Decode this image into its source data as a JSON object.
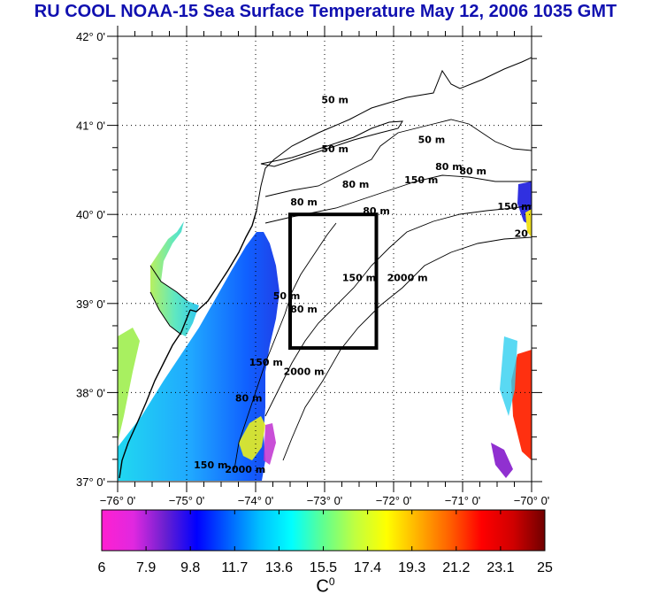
{
  "title": "RU COOL  NOAA-15 Sea Surface Temperature May 12, 2006 1035 GMT",
  "map": {
    "lat_labels": [
      "42° 0'",
      "41° 0'",
      "40° 0'",
      "39° 0'",
      "38° 0'",
      "37° 0'"
    ],
    "lat_values": [
      42,
      41,
      40,
      39,
      38,
      37
    ],
    "lon_labels": [
      "−76° 0'",
      "−75° 0'",
      "−74° 0'",
      "−73° 0'",
      "−72° 0'",
      "−71° 0'",
      "−70° 0'"
    ],
    "lon_values": [
      -76,
      -75,
      -74,
      -73,
      -72,
      -71,
      -70
    ],
    "lat_range": [
      37,
      42
    ],
    "lon_range": [
      -76,
      -70
    ],
    "study_box": {
      "lon_min": -73.5,
      "lon_max": -72.25,
      "lat_min": 38.5,
      "lat_max": 40.0
    },
    "contour_labels": [
      {
        "text": "50 m",
        "lon": -72.85,
        "lat": 41.25
      },
      {
        "text": "50 m",
        "lon": -72.85,
        "lat": 40.7
      },
      {
        "text": "50 m",
        "lon": -71.45,
        "lat": 40.8
      },
      {
        "text": "80 m",
        "lon": -71.2,
        "lat": 40.5
      },
      {
        "text": "80 m",
        "lon": -70.85,
        "lat": 40.45
      },
      {
        "text": "80 m",
        "lon": -72.55,
        "lat": 40.3
      },
      {
        "text": "150 m",
        "lon": -71.6,
        "lat": 40.35
      },
      {
        "text": "80 m",
        "lon": -73.3,
        "lat": 40.1
      },
      {
        "text": "80 m",
        "lon": -72.25,
        "lat": 40.0
      },
      {
        "text": "150 m",
        "lon": -70.25,
        "lat": 40.05
      },
      {
        "text": "20",
        "lon": -70.15,
        "lat": 39.75
      },
      {
        "text": "150 m",
        "lon": -72.5,
        "lat": 39.25
      },
      {
        "text": "2000 m",
        "lon": -71.8,
        "lat": 39.25
      },
      {
        "text": "80 m",
        "lon": -73.3,
        "lat": 38.9
      },
      {
        "text": "50 m",
        "lon": -73.55,
        "lat": 39.05
      },
      {
        "text": "150 m",
        "lon": -73.85,
        "lat": 38.3
      },
      {
        "text": "2000 m",
        "lon": -73.3,
        "lat": 38.2
      },
      {
        "text": "80 m",
        "lon": -74.1,
        "lat": 37.9
      },
      {
        "text": "150 m",
        "lon": -74.65,
        "lat": 37.15
      },
      {
        "text": "2000 m",
        "lon": -74.15,
        "lat": 37.1
      }
    ]
  },
  "colorbar": {
    "min": 6,
    "max": 25,
    "tick_labels": [
      "6",
      "7.9",
      "9.8",
      "11.7",
      "13.6",
      "15.5",
      "17.4",
      "19.3",
      "21.2",
      "23.1",
      "25"
    ],
    "unit_base": "C",
    "unit_sup": "0",
    "stops": [
      "#ff20d0",
      "#e028e0",
      "#6a20d0",
      "#0000ff",
      "#0060ff",
      "#00c0ff",
      "#00ffff",
      "#60ff90",
      "#c0ff40",
      "#ffff00",
      "#ffb000",
      "#ff6000",
      "#ff0000",
      "#d00000",
      "#700000"
    ]
  },
  "colors": {
    "title": "#1010b0",
    "frame": "#000000",
    "land_contour": "#000000",
    "box": "#000000"
  }
}
